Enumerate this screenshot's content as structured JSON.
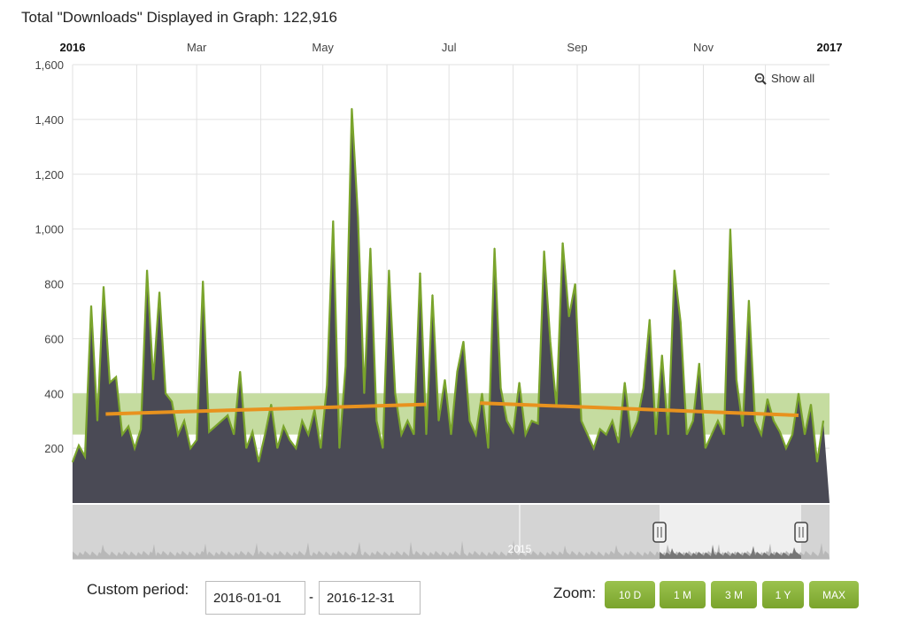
{
  "title": "Total \"Downloads\" Displayed in Graph: 122,916",
  "show_all": "Show all",
  "custom_period_label": "Custom period:",
  "date_from": "2016-01-01",
  "date_to": "2016-12-31",
  "date_separator": "-",
  "zoom_label": "Zoom:",
  "zoom_buttons": [
    "10 D",
    "1 M",
    "3 M",
    "1 Y",
    "MAX"
  ],
  "navigator_label": "2015",
  "colors": {
    "line": "#7aa42c",
    "area": "#4a4a55",
    "band": "#c5dca0",
    "trend": "#e8921e"
  },
  "chart_data": {
    "type": "area",
    "x_start": "2016-01-01",
    "x_step_days": 3,
    "x_ticks": [
      "2016",
      "Mar",
      "May",
      "Jul",
      "Sep",
      "Nov",
      "2017"
    ],
    "y_ticks": [
      "200",
      "400",
      "600",
      "800",
      "1,000",
      "1,200",
      "1,400",
      "1,600"
    ],
    "ylim": [
      0,
      1600
    ],
    "plot_band": [
      250,
      400
    ],
    "values": [
      150,
      210,
      170,
      720,
      300,
      790,
      440,
      460,
      250,
      280,
      200,
      270,
      850,
      450,
      770,
      400,
      370,
      250,
      300,
      200,
      230,
      810,
      260,
      280,
      300,
      320,
      250,
      480,
      200,
      260,
      150,
      250,
      360,
      200,
      280,
      230,
      200,
      300,
      250,
      340,
      200,
      430,
      1030,
      200,
      500,
      1440,
      1040,
      400,
      930,
      300,
      200,
      850,
      400,
      250,
      300,
      250,
      840,
      250,
      760,
      300,
      450,
      250,
      480,
      590,
      300,
      250,
      400,
      200,
      930,
      420,
      300,
      260,
      440,
      250,
      300,
      290,
      920,
      590,
      350,
      950,
      680,
      800,
      300,
      250,
      200,
      270,
      250,
      300,
      220,
      440,
      250,
      300,
      420,
      670,
      250,
      540,
      250,
      850,
      660,
      250,
      300,
      510,
      200,
      250,
      300,
      250,
      1000,
      450,
      280,
      740,
      300,
      250,
      380,
      300,
      260,
      200,
      250,
      400,
      250,
      360,
      150,
      300
    ],
    "trend_lines": [
      {
        "from": "2016-01-17",
        "to": "2016-06-20",
        "y": [
          325,
          360
        ]
      },
      {
        "from": "2016-07-16",
        "to": "2016-12-17",
        "y": [
          365,
          320
        ]
      }
    ]
  }
}
